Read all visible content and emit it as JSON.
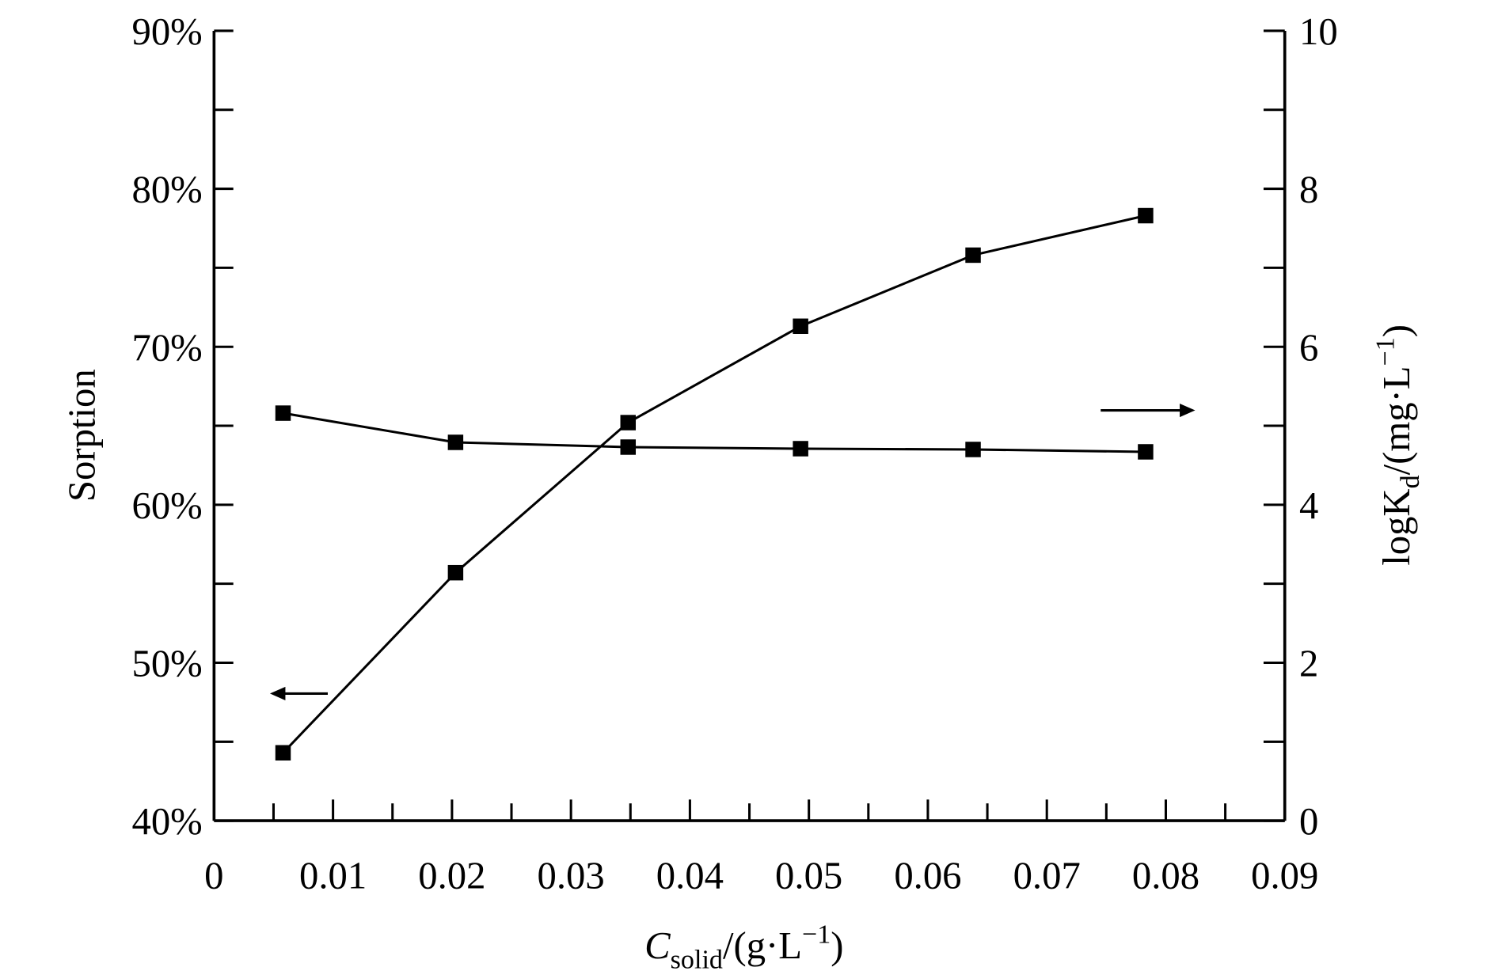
{
  "chart_data": {
    "type": "line",
    "title": "",
    "xlabel": {
      "main": "C",
      "sub": "solid",
      "rest": "/(g·L",
      "sup": "−1",
      "close": ")"
    },
    "ylabel_left": "Sorption",
    "ylabel_right": {
      "main": "logK",
      "sub": "d",
      "rest": "/(mg·L",
      "sup": "−1",
      "close": ")"
    },
    "xlim": [
      0,
      0.09
    ],
    "ylim_left": [
      40,
      90
    ],
    "ylim_right": [
      0,
      10
    ],
    "x_ticks": [
      "0",
      "0.01",
      "0.02",
      "0.03",
      "0.04",
      "0.05",
      "0.06",
      "0.07",
      "0.08",
      "0.09"
    ],
    "y_left_ticks": [
      "40%",
      "50%",
      "60%",
      "70%",
      "80%",
      "90%"
    ],
    "y_right_ticks": [
      "0",
      "2",
      "4",
      "6",
      "8",
      "10"
    ],
    "grid": false,
    "marker": "square",
    "color": "#000000",
    "x": [
      0.0058,
      0.0203,
      0.0348,
      0.0493,
      0.0638,
      0.0783
    ],
    "series": [
      {
        "axis": "left",
        "unit": "%",
        "values": [
          44.3,
          55.7,
          65.2,
          71.3,
          75.8,
          78.3
        ]
      },
      {
        "axis": "right",
        "values": [
          5.16,
          4.79,
          4.73,
          4.71,
          4.7,
          4.67
        ]
      }
    ],
    "annotations": [
      {
        "type": "arrow",
        "direction": "left",
        "meaning": "points to left axis"
      },
      {
        "type": "arrow",
        "direction": "right",
        "meaning": "points to right axis"
      }
    ]
  }
}
